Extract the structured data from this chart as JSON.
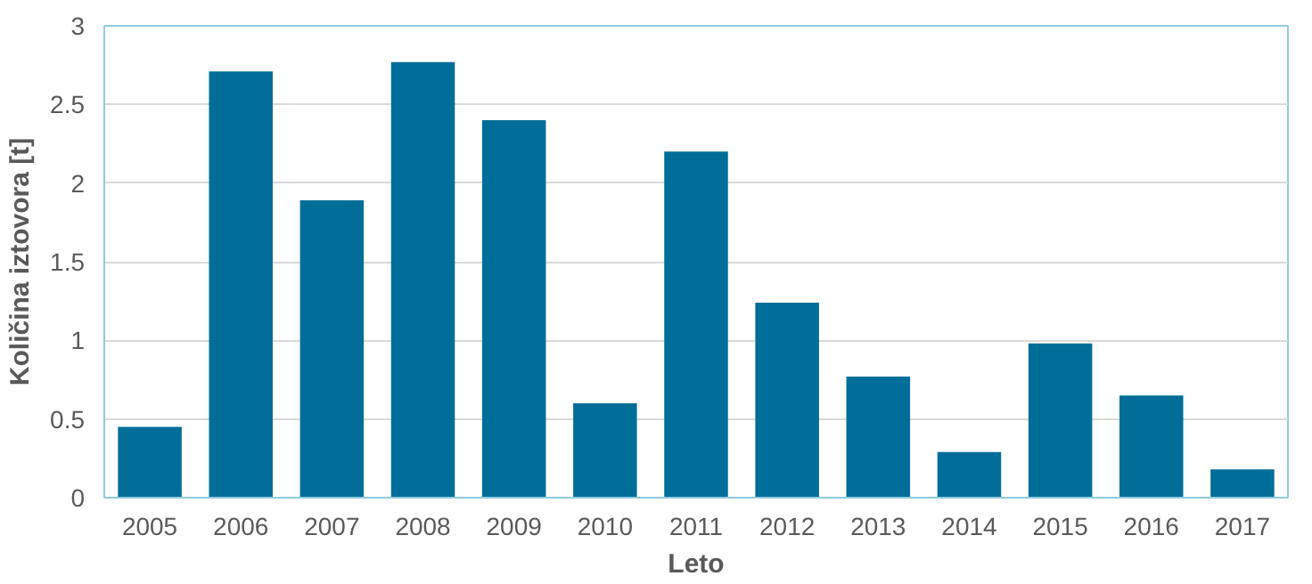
{
  "chart_data": {
    "type": "bar",
    "xlabel": "Leto",
    "ylabel": "Količina iztovora [t]",
    "categories": [
      "2005",
      "2006",
      "2007",
      "2008",
      "2009",
      "2010",
      "2011",
      "2012",
      "2013",
      "2014",
      "2015",
      "2016",
      "2017"
    ],
    "values": [
      0.45,
      2.71,
      1.89,
      2.77,
      2.4,
      0.6,
      2.2,
      1.24,
      0.77,
      0.29,
      0.98,
      0.65,
      0.18
    ],
    "color": "#006e98",
    "ylim": [
      0,
      3
    ],
    "yticks": [
      0,
      0.5,
      1,
      1.5,
      2,
      2.5,
      3
    ],
    "grid": "y"
  }
}
